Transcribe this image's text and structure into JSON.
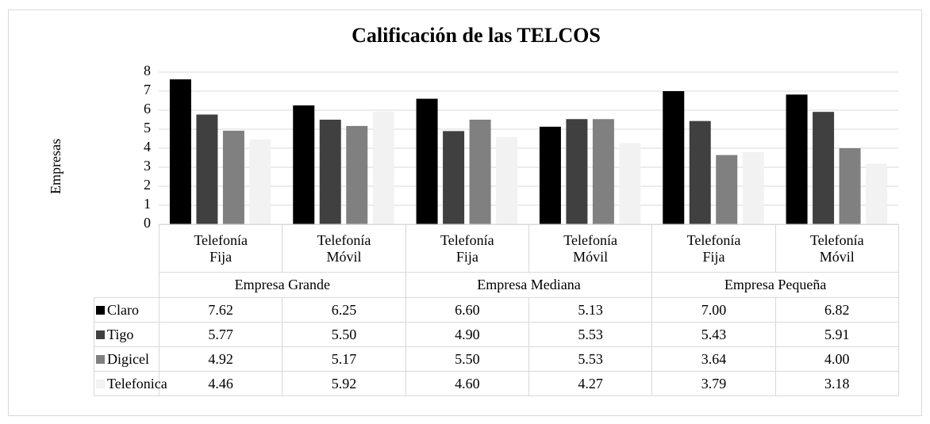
{
  "chart_data": {
    "type": "bar",
    "title": "Calificación de las TELCOS",
    "y_label": "Empresas",
    "groups": [
      "Empresa Grande",
      "Empresa Mediana",
      "Empresa Pequeña"
    ],
    "categories": [
      "Telefonía Fija",
      "Telefonía Móvil",
      "Telefonía Fija",
      "Telefonía Móvil",
      "Telefonía Fija",
      "Telefonía Móvil"
    ],
    "series": [
      {
        "name": "Claro",
        "color": "#000000",
        "values": [
          7.62,
          6.25,
          6.6,
          5.13,
          7,
          6.82
        ],
        "value_labels": [
          "7.62",
          "6.25",
          "6.60",
          "5.13",
          "7.00",
          "6.82"
        ]
      },
      {
        "name": "Tigo",
        "color": "#404040",
        "values": [
          5.77,
          5.5,
          4.9,
          5.53,
          5.43,
          5.91
        ],
        "value_labels": [
          "5.77",
          "5.50",
          "4.90",
          "5.53",
          "5.43",
          "5.91"
        ]
      },
      {
        "name": "Digicel",
        "color": "#808080",
        "values": [
          4.92,
          5.17,
          5.5,
          5.53,
          3.64,
          4
        ],
        "value_labels": [
          "4.92",
          "5.17",
          "5.50",
          "5.53",
          "3.64",
          "4.00"
        ]
      },
      {
        "name": "Telefonica",
        "color": "#f2f2f2",
        "values": [
          4.46,
          5.92,
          4.6,
          4.27,
          3.79,
          3.18
        ],
        "value_labels": [
          "4.46",
          "5.92",
          "4.60",
          "4.27",
          "3.79",
          "3.18"
        ]
      }
    ],
    "ylim": [
      0,
      8
    ],
    "yticks": [
      0,
      1,
      2,
      3,
      4,
      5,
      6,
      7,
      8
    ],
    "grid": true
  }
}
